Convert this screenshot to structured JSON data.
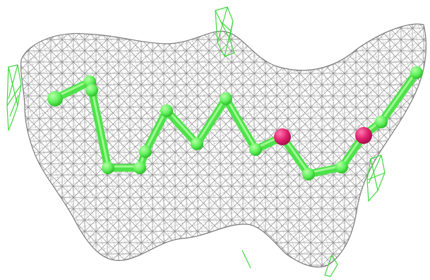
{
  "scene": {
    "background": "#ffffff",
    "mesh_color": "#8c8c8c",
    "carbon_color": "#5ef05a",
    "carbon_highlight": "#a8ff9a",
    "oxygen_color": "#e0206e",
    "oxygen_highlight": "#ff6aa6",
    "difference_map_color": "#3ed83a"
  },
  "molecule": {
    "atoms": [
      {
        "element": "C"
      },
      {
        "element": "C"
      },
      {
        "element": "C"
      },
      {
        "element": "C"
      },
      {
        "element": "C"
      },
      {
        "element": "C"
      },
      {
        "element": "C"
      },
      {
        "element": "C"
      },
      {
        "element": "C"
      },
      {
        "element": "C"
      },
      {
        "element": "C"
      },
      {
        "element": "C"
      },
      {
        "element": "O"
      },
      {
        "element": "C"
      },
      {
        "element": "C"
      },
      {
        "element": "C"
      },
      {
        "element": "O"
      },
      {
        "element": "C"
      },
      {
        "element": "C"
      }
    ]
  }
}
